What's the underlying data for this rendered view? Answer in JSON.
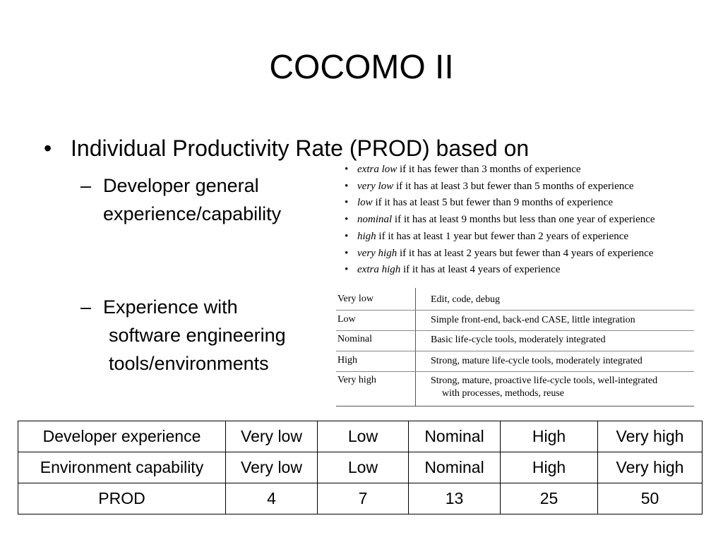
{
  "slide": {
    "title": "COCOMO II",
    "bullet_main": "Individual Productivity Rate (PROD) based on",
    "sub1": {
      "line1": "Developer general",
      "line2": "experience/capability"
    },
    "sub2": {
      "line1": "Experience with",
      "line2": "software engineering",
      "line3": "tools/environments"
    },
    "dash": "–",
    "bullet_glyph": "•"
  },
  "experience_levels": [
    {
      "term": "extra low",
      "rest": " if it has fewer than 3 months of experience"
    },
    {
      "term": "very low",
      "rest": " if it has at least 3 but fewer than 5 months of experience"
    },
    {
      "term": "low",
      "rest": " if it has at least 5 but fewer than 9 months of experience"
    },
    {
      "term": "nominal",
      "rest": " if it has at least 9 months but less than one year of experience"
    },
    {
      "term": "high",
      "rest": " if it has at least 1 year but fewer than 2 years of experience"
    },
    {
      "term": "very high",
      "rest": " if it has at least 2 years but fewer than 4 years of experience"
    },
    {
      "term": "extra high",
      "rest": " if it has at least 4 years of experience"
    }
  ],
  "tools_table": [
    {
      "level": "Very low",
      "desc1": "Edit, code, debug",
      "desc2": ""
    },
    {
      "level": "Low",
      "desc1": "Simple front-end, back-end CASE, little integration",
      "desc2": ""
    },
    {
      "level": "Nominal",
      "desc1": "Basic life-cycle tools, moderately integrated",
      "desc2": ""
    },
    {
      "level": "High",
      "desc1": "Strong, mature life-cycle tools, moderately integrated",
      "desc2": ""
    },
    {
      "level": "Very high",
      "desc1": "Strong, mature, proactive life-cycle tools, well-integrated",
      "desc2": "with processes, methods, reuse"
    }
  ],
  "prod_table": {
    "rows": [
      [
        "Developer experience",
        "Very low",
        "Low",
        "Nominal",
        "High",
        "Very high"
      ],
      [
        "Environment capability",
        "Very low",
        "Low",
        "Nominal",
        "High",
        "Very high"
      ],
      [
        "PROD",
        "4",
        "7",
        "13",
        "25",
        "50"
      ]
    ]
  }
}
